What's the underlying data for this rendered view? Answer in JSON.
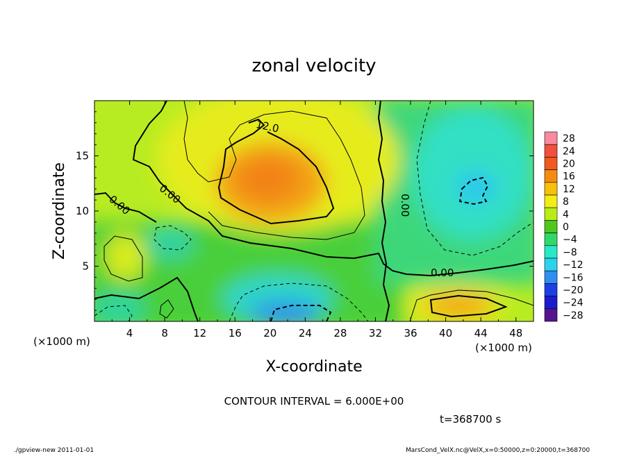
{
  "chart_data": {
    "type": "heatmap",
    "title": "zonal velocity",
    "xlabel": "X-coordinate",
    "ylabel": "Z-coordinate",
    "x_unit": "(×1000 m)",
    "z_unit": "(×1000 m)",
    "xlim": [
      0,
      50
    ],
    "ylim": [
      0,
      20
    ],
    "x_ticks": [
      "4",
      "8",
      "12",
      "16",
      "20",
      "24",
      "28",
      "32",
      "36",
      "40",
      "44",
      "48"
    ],
    "x_tick_values": [
      4,
      8,
      12,
      16,
      20,
      24,
      28,
      32,
      36,
      40,
      44,
      48
    ],
    "y_ticks": [
      "5",
      "10",
      "15"
    ],
    "y_tick_values": [
      5,
      10,
      15
    ],
    "colorbar_levels": [
      "28",
      "24",
      "20",
      "16",
      "12",
      "8",
      "4",
      "0",
      "−4",
      "−8",
      "−12",
      "−16",
      "−20",
      "−24",
      "−28"
    ],
    "colorbar_colors": [
      "#f98aa0",
      "#f24f3f",
      "#f2591e",
      "#f48c12",
      "#f6c00c",
      "#f2ec17",
      "#b9ec16",
      "#4cc91c",
      "#2ed96a",
      "#27e8c7",
      "#2bd2ec",
      "#2f8ef0",
      "#1d3fe6",
      "#1c1ccc",
      "#55158f"
    ],
    "contour_interval": "CONTOUR INTERVAL = 6.000E+00",
    "contour_labels": [
      "12.0",
      "0.00",
      "0.00",
      "0.00",
      "0.00"
    ],
    "time": "t=368700 s",
    "grid": false,
    "legend_position": "right colorbar"
  },
  "footer": {
    "left": "./gpview-new  2011-01-01",
    "right": "MarsCond_VelX.nc@VelX,x=0:50000,z=0:20000,t=368700"
  }
}
